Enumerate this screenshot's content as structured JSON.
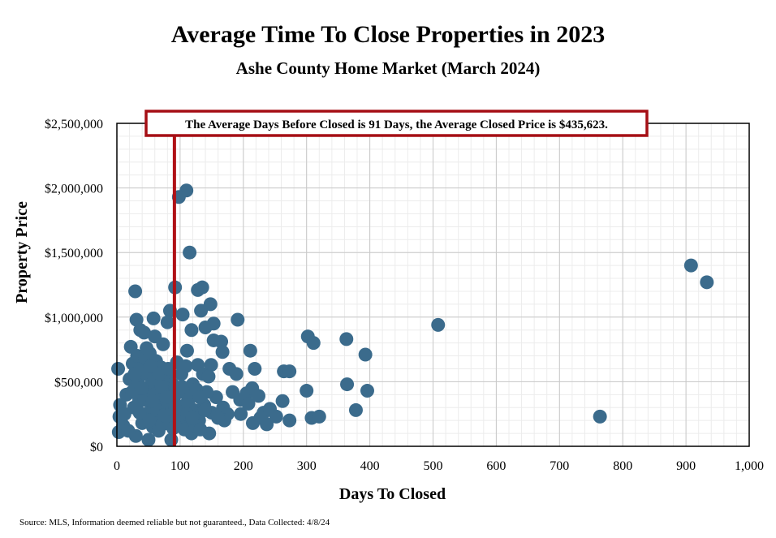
{
  "title": "Average Time To Close Properties in 2023",
  "subtitle": "Ashe County Home Market (March 2024)",
  "source": "Source: MLS, Information deemed reliable but not guaranteed., Data Collected: 4/8/24",
  "chart_data": {
    "type": "scatter",
    "xlabel": "Days To Closed",
    "ylabel": "Property Price",
    "xlim": [
      0,
      1000
    ],
    "ylim": [
      0,
      2500000
    ],
    "x_ticks": [
      "0",
      "100",
      "200",
      "300",
      "400",
      "500",
      "600",
      "700",
      "800",
      "900",
      "1,000"
    ],
    "y_ticks": [
      "$0",
      "$500,000",
      "$1,000,000",
      "$1,500,000",
      "$2,000,000",
      "$2,500,000"
    ],
    "grid": true,
    "marker_color": "#3b6b8c",
    "reference_line": {
      "x": 91,
      "color": "#b01116"
    },
    "annotation": "The Average Days Before Closed is 91 Days, the Average Closed Price is $435,623.",
    "points": [
      [
        110,
        1980000
      ],
      [
        98,
        1930000
      ],
      [
        115,
        1500000
      ],
      [
        908,
        1400000
      ],
      [
        933,
        1270000
      ],
      [
        29,
        1200000
      ],
      [
        92,
        1230000
      ],
      [
        128,
        1210000
      ],
      [
        135,
        1230000
      ],
      [
        148,
        1100000
      ],
      [
        84,
        1050000
      ],
      [
        104,
        1020000
      ],
      [
        133,
        1050000
      ],
      [
        191,
        980000
      ],
      [
        31,
        980000
      ],
      [
        58,
        990000
      ],
      [
        80,
        960000
      ],
      [
        508,
        940000
      ],
      [
        37,
        900000
      ],
      [
        118,
        900000
      ],
      [
        140,
        920000
      ],
      [
        153,
        950000
      ],
      [
        302,
        850000
      ],
      [
        311,
        800000
      ],
      [
        363,
        830000
      ],
      [
        393,
        710000
      ],
      [
        153,
        820000
      ],
      [
        165,
        810000
      ],
      [
        167,
        730000
      ],
      [
        211,
        740000
      ],
      [
        22,
        770000
      ],
      [
        43,
        880000
      ],
      [
        60,
        850000
      ],
      [
        73,
        790000
      ],
      [
        111,
        740000
      ],
      [
        149,
        630000
      ],
      [
        178,
        600000
      ],
      [
        189,
        560000
      ],
      [
        218,
        600000
      ],
      [
        264,
        580000
      ],
      [
        273,
        580000
      ],
      [
        364,
        480000
      ],
      [
        396,
        430000
      ],
      [
        300,
        430000
      ],
      [
        378,
        280000
      ],
      [
        308,
        220000
      ],
      [
        320,
        230000
      ],
      [
        273,
        200000
      ],
      [
        764,
        230000
      ],
      [
        2,
        600000
      ],
      [
        5,
        320000
      ],
      [
        4,
        230000
      ],
      [
        3,
        110000
      ],
      [
        10,
        160000
      ],
      [
        15,
        400000
      ],
      [
        20,
        520000
      ],
      [
        25,
        640000
      ],
      [
        32,
        700000
      ],
      [
        38,
        600000
      ],
      [
        45,
        680000
      ],
      [
        52,
        720000
      ],
      [
        62,
        660000
      ],
      [
        70,
        610000
      ],
      [
        79,
        540000
      ],
      [
        88,
        480000
      ],
      [
        95,
        650000
      ],
      [
        102,
        560000
      ],
      [
        109,
        620000
      ],
      [
        120,
        480000
      ],
      [
        128,
        630000
      ],
      [
        136,
        560000
      ],
      [
        145,
        540000
      ],
      [
        157,
        380000
      ],
      [
        168,
        300000
      ],
      [
        175,
        250000
      ],
      [
        183,
        420000
      ],
      [
        195,
        360000
      ],
      [
        205,
        410000
      ],
      [
        214,
        450000
      ],
      [
        224,
        390000
      ],
      [
        232,
        260000
      ],
      [
        242,
        290000
      ],
      [
        252,
        230000
      ],
      [
        262,
        350000
      ],
      [
        215,
        180000
      ],
      [
        237,
        170000
      ],
      [
        227,
        220000
      ],
      [
        170,
        200000
      ],
      [
        146,
        100000
      ],
      [
        118,
        100000
      ],
      [
        86,
        50000
      ],
      [
        50,
        50000
      ],
      [
        30,
        80000
      ],
      [
        18,
        120000
      ],
      [
        12,
        250000
      ],
      [
        27,
        300000
      ],
      [
        35,
        350000
      ],
      [
        42,
        250000
      ],
      [
        48,
        420000
      ],
      [
        55,
        300000
      ],
      [
        63,
        230000
      ],
      [
        68,
        380000
      ],
      [
        75,
        300000
      ],
      [
        82,
        220000
      ],
      [
        90,
        350000
      ],
      [
        97,
        280000
      ],
      [
        105,
        200000
      ],
      [
        113,
        350000
      ],
      [
        122,
        280000
      ],
      [
        130,
        200000
      ],
      [
        138,
        320000
      ],
      [
        150,
        260000
      ],
      [
        160,
        220000
      ],
      [
        196,
        250000
      ],
      [
        208,
        330000
      ],
      [
        40,
        180000
      ],
      [
        57,
        150000
      ],
      [
        66,
        120000
      ],
      [
        72,
        170000
      ],
      [
        89,
        140000
      ],
      [
        99,
        180000
      ],
      [
        107,
        130000
      ],
      [
        124,
        160000
      ],
      [
        132,
        130000
      ],
      [
        24,
        420000
      ],
      [
        33,
        500000
      ],
      [
        46,
        560000
      ],
      [
        54,
        480000
      ],
      [
        61,
        520000
      ],
      [
        77,
        450000
      ],
      [
        84,
        400000
      ],
      [
        93,
        450000
      ],
      [
        101,
        420000
      ],
      [
        115,
        400000
      ],
      [
        126,
        440000
      ],
      [
        142,
        420000
      ],
      [
        44,
        360000
      ],
      [
        59,
        400000
      ],
      [
        71,
        460000
      ],
      [
        108,
        320000
      ],
      [
        36,
        260000
      ],
      [
        51,
        200000
      ],
      [
        64,
        280000
      ],
      [
        74,
        240000
      ],
      [
        87,
        290000
      ],
      [
        96,
        240000
      ],
      [
        111,
        250000
      ],
      [
        119,
        220000
      ],
      [
        131,
        380000
      ],
      [
        139,
        280000
      ],
      [
        53,
        620000
      ],
      [
        67,
        560000
      ],
      [
        81,
        600000
      ],
      [
        28,
        560000
      ],
      [
        47,
        760000
      ],
      [
        39,
        450000
      ],
      [
        56,
        350000
      ],
      [
        78,
        380000
      ],
      [
        92,
        300000
      ],
      [
        103,
        460000
      ]
    ]
  }
}
